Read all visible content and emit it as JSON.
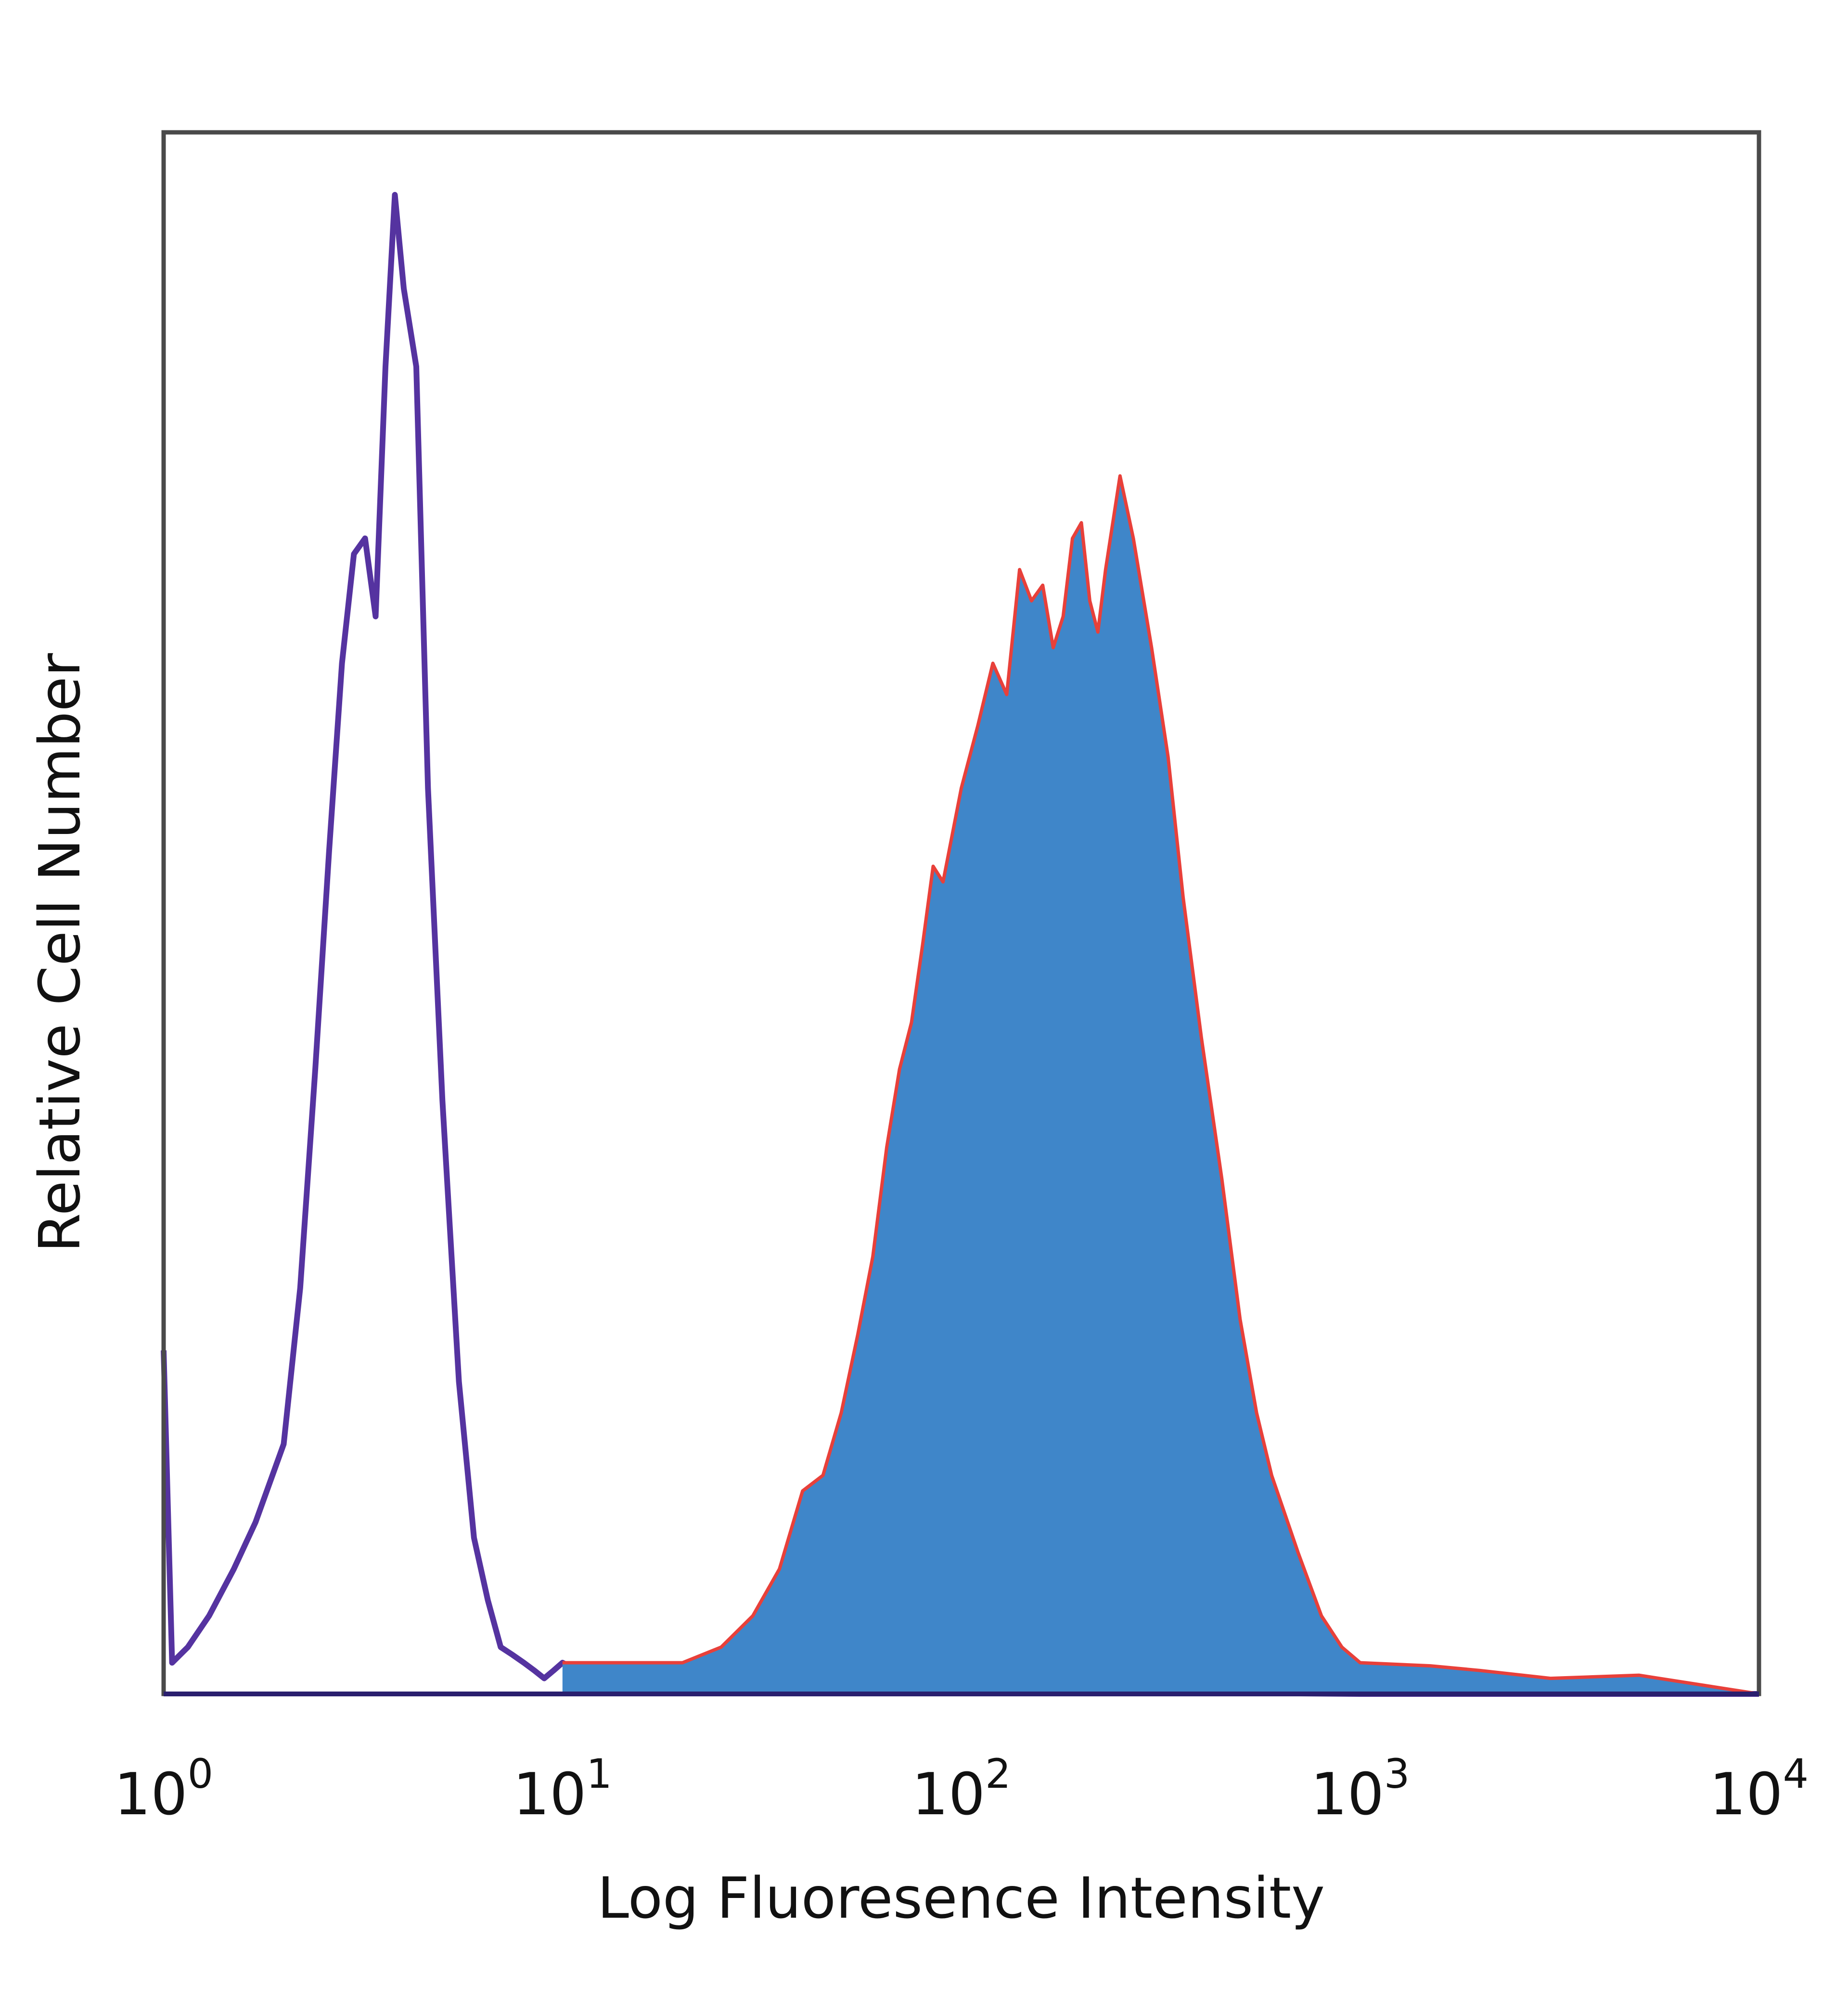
{
  "chart_data": {
    "type": "area",
    "xlabel": "Log Fluoresence Intensity",
    "ylabel": "Relative Cell Number",
    "x_scale": "log",
    "xlim": [
      1,
      10000
    ],
    "ylim": [
      0,
      1.0
    ],
    "x_ticks": [
      {
        "base": "10",
        "exp": "0",
        "value": 1
      },
      {
        "base": "10",
        "exp": "1",
        "value": 10
      },
      {
        "base": "10",
        "exp": "2",
        "value": 100
      },
      {
        "base": "10",
        "exp": "3",
        "value": 1000
      },
      {
        "base": "10",
        "exp": "4",
        "value": 10000
      }
    ],
    "grid": false,
    "series": [
      {
        "style": "outline",
        "color": "#5533a0",
        "x": [
          1.0,
          1.05,
          1.15,
          1.3,
          1.5,
          1.7,
          2.0,
          2.2,
          2.4,
          2.6,
          2.8,
          3.0,
          3.2,
          3.4,
          3.6,
          3.8,
          4.0,
          4.3,
          4.6,
          5.0,
          5.5,
          6.0,
          6.5,
          7.0,
          7.5,
          8.0,
          8.5,
          9.0,
          9.5,
          10.0,
          12,
          15,
          20,
          30,
          50,
          100,
          1000,
          10000
        ],
        "y": [
          0.22,
          0.02,
          0.03,
          0.05,
          0.08,
          0.11,
          0.16,
          0.26,
          0.4,
          0.54,
          0.66,
          0.73,
          0.74,
          0.69,
          0.85,
          0.96,
          0.9,
          0.85,
          0.58,
          0.38,
          0.2,
          0.1,
          0.06,
          0.03,
          0.025,
          0.02,
          0.015,
          0.01,
          0.015,
          0.02,
          0.01,
          0.008,
          0.005,
          0.003,
          0.002,
          0.002,
          0.0,
          0.0
        ]
      },
      {
        "style": "filled",
        "fill_color": "#3f86c9",
        "outline_color": "#e8403a",
        "x": [
          10.0,
          20,
          25,
          30,
          35,
          40,
          45,
          50,
          55,
          60,
          65,
          70,
          75,
          80,
          85,
          90,
          100,
          110,
          120,
          130,
          140,
          150,
          160,
          170,
          180,
          190,
          200,
          210,
          220,
          230,
          250,
          270,
          300,
          330,
          360,
          400,
          450,
          500,
          550,
          600,
          700,
          800,
          900,
          1000,
          1500,
          2000,
          3000,
          5000,
          10000
        ],
        "y": [
          0.02,
          0.02,
          0.03,
          0.05,
          0.08,
          0.13,
          0.14,
          0.18,
          0.23,
          0.28,
          0.35,
          0.4,
          0.43,
          0.48,
          0.53,
          0.52,
          0.58,
          0.62,
          0.66,
          0.64,
          0.72,
          0.7,
          0.71,
          0.67,
          0.69,
          0.74,
          0.75,
          0.7,
          0.68,
          0.72,
          0.78,
          0.74,
          0.67,
          0.6,
          0.51,
          0.42,
          0.33,
          0.24,
          0.18,
          0.14,
          0.09,
          0.05,
          0.03,
          0.02,
          0.018,
          0.015,
          0.01,
          0.012,
          0.0
        ]
      }
    ]
  }
}
